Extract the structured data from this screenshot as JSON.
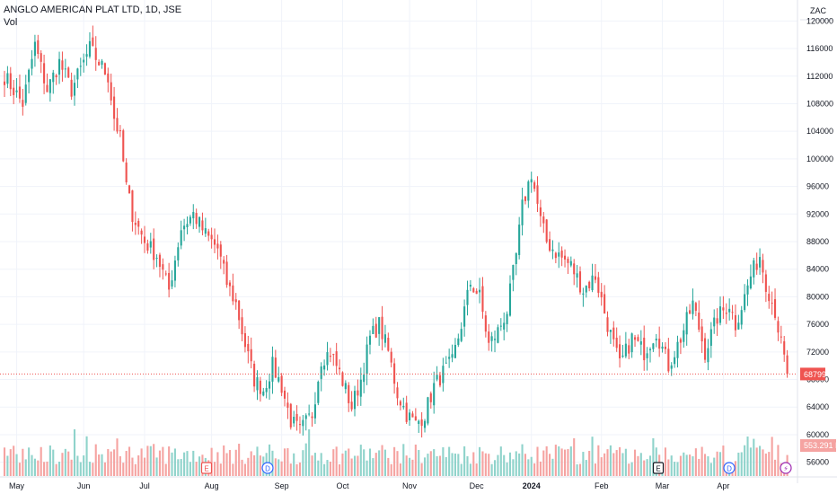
{
  "legend": {
    "title": "ANGLO AMERICAN PLAT LTD, 1D, JSE",
    "volume_label": "Vol"
  },
  "currency_label": "ZAC",
  "colors": {
    "up": "#26a69a",
    "down": "#ef5350",
    "up_vol": "#8fd3cb",
    "down_vol": "#f5a3a1",
    "grid": "#f0f3fa"
  },
  "chart_data": {
    "type": "candlestick",
    "title": "ANGLO AMERICAN PLAT LTD, 1D, JSE",
    "ylim": [
      54000,
      122000
    ],
    "y_ticks": [
      56000,
      60000,
      64000,
      68000,
      72000,
      76000,
      80000,
      84000,
      88000,
      92000,
      96000,
      100000,
      104000,
      108000,
      112000,
      116000,
      120000
    ],
    "x_ticks": [
      {
        "label": "May",
        "i": 4
      },
      {
        "label": "Jun",
        "i": 26
      },
      {
        "label": "Jul",
        "i": 46
      },
      {
        "label": "Aug",
        "i": 68
      },
      {
        "label": "Sep",
        "i": 91
      },
      {
        "label": "Oct",
        "i": 111
      },
      {
        "label": "Nov",
        "i": 133
      },
      {
        "label": "Dec",
        "i": 155
      },
      {
        "label": "2024",
        "i": 173,
        "bold": true
      },
      {
        "label": "Feb",
        "i": 196
      },
      {
        "label": "Mar",
        "i": 216
      },
      {
        "label": "Apr",
        "i": 236
      }
    ],
    "close_waypoints": [
      [
        0,
        112000
      ],
      [
        6,
        108000
      ],
      [
        10,
        116500
      ],
      [
        14,
        110000
      ],
      [
        18,
        114000
      ],
      [
        22,
        110000
      ],
      [
        28,
        116000
      ],
      [
        34,
        112000
      ],
      [
        36,
        106000
      ],
      [
        38,
        103000
      ],
      [
        40,
        96000
      ],
      [
        42,
        92000
      ],
      [
        46,
        88000
      ],
      [
        50,
        86000
      ],
      [
        54,
        81000
      ],
      [
        58,
        90000
      ],
      [
        62,
        92000
      ],
      [
        66,
        89000
      ],
      [
        70,
        87000
      ],
      [
        73,
        82000
      ],
      [
        76,
        79000
      ],
      [
        79,
        73000
      ],
      [
        82,
        68000
      ],
      [
        85,
        66500
      ],
      [
        88,
        70000
      ],
      [
        91,
        67000
      ],
      [
        94,
        62000
      ],
      [
        97,
        60500
      ],
      [
        101,
        63000
      ],
      [
        104,
        71000
      ],
      [
        107,
        72000
      ],
      [
        110,
        69000
      ],
      [
        114,
        64000
      ],
      [
        117,
        68000
      ],
      [
        120,
        74000
      ],
      [
        123,
        76000
      ],
      [
        126,
        72000
      ],
      [
        129,
        66000
      ],
      [
        132,
        63000
      ],
      [
        135,
        61500
      ],
      [
        138,
        63000
      ],
      [
        141,
        67000
      ],
      [
        144,
        69000
      ],
      [
        147,
        70500
      ],
      [
        150,
        76000
      ],
      [
        153,
        82000
      ],
      [
        156,
        80000
      ],
      [
        159,
        73000
      ],
      [
        162,
        75000
      ],
      [
        165,
        78000
      ],
      [
        168,
        86000
      ],
      [
        170,
        93000
      ],
      [
        173,
        98000
      ],
      [
        176,
        91000
      ],
      [
        178,
        88000
      ],
      [
        182,
        86000
      ],
      [
        186,
        84500
      ],
      [
        190,
        81000
      ],
      [
        194,
        83000
      ],
      [
        198,
        76000
      ],
      [
        202,
        70000
      ],
      [
        206,
        74000
      ],
      [
        210,
        72000
      ],
      [
        214,
        75000
      ],
      [
        218,
        70000
      ],
      [
        222,
        74000
      ],
      [
        226,
        79000
      ],
      [
        230,
        72000
      ],
      [
        234,
        77000
      ],
      [
        238,
        79000
      ],
      [
        240,
        76000
      ],
      [
        243,
        80000
      ],
      [
        245,
        83000
      ],
      [
        248,
        86000
      ],
      [
        250,
        82000
      ],
      [
        253,
        78000
      ],
      [
        255,
        73000
      ],
      [
        257,
        68799
      ]
    ],
    "last_price": 68799,
    "volume": {
      "last": "553.291 K",
      "ylim": [
        0,
        2000000
      ],
      "max_visible": 1500000
    },
    "event_markers": [
      {
        "type": "E",
        "i": 72,
        "color": "#ef5350"
      },
      {
        "type": "D",
        "i": 91,
        "color": "#2962ff"
      },
      {
        "type": "E",
        "i": 225,
        "color": "#131722"
      },
      {
        "type": "D",
        "i": 250,
        "color": "#2962ff"
      },
      {
        "type": "⚡",
        "i": 269,
        "color": "#9c27b0"
      }
    ]
  }
}
